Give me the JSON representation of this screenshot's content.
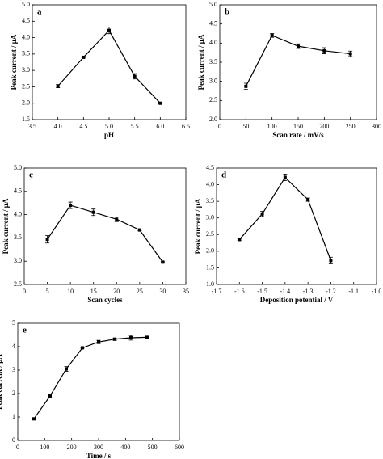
{
  "chart_data": [
    {
      "type": "line",
      "title": "a",
      "xlabel": "pH",
      "ylabel": "Peak current / μA",
      "color": "#000000",
      "x": [
        4.0,
        4.5,
        5.0,
        5.5,
        6.0
      ],
      "values": [
        2.52,
        3.4,
        4.22,
        2.82,
        2.0
      ],
      "errors": [
        0.05,
        0.02,
        0.1,
        0.08,
        0.02
      ],
      "xlim": [
        3.5,
        6.5
      ],
      "xticks": [
        3.5,
        {
          "value": 4,
          "label": "4.0"
        },
        4.5,
        {
          "value": 5,
          "label": "5.0"
        },
        5.5,
        {
          "value": 6,
          "label": "6.0"
        },
        6.5
      ],
      "ylim": [
        1.5,
        5
      ],
      "yticks": [
        1.5,
        {
          "value": 2,
          "label": "2.0"
        },
        2.5,
        {
          "value": 3,
          "label": "3.0"
        },
        3.5,
        {
          "value": 4,
          "label": "4.0"
        },
        4.5,
        {
          "value": 5,
          "label": "5.0"
        }
      ]
    },
    {
      "type": "line",
      "title": "b",
      "xlabel": "Scan rate / mV/s",
      "ylabel": "Peak current / μA",
      "color": "#000000",
      "x": [
        50,
        100,
        150,
        200,
        250
      ],
      "values": [
        2.87,
        4.2,
        3.92,
        3.8,
        3.72
      ],
      "errors": [
        0.08,
        0.05,
        0.06,
        0.08,
        0.07
      ],
      "xlim": [
        0,
        300
      ],
      "xticks": [
        0,
        50,
        100,
        150,
        200,
        250,
        300
      ],
      "ylim": [
        2,
        5
      ],
      "yticks": [
        {
          "value": 2,
          "label": "2.0"
        },
        2.5,
        {
          "value": 3,
          "label": "3.0"
        },
        3.5,
        {
          "value": 4,
          "label": "4.0"
        },
        4.5,
        {
          "value": 5,
          "label": "5.0"
        }
      ]
    },
    {
      "type": "line",
      "title": "c",
      "xlabel": "Scan cycles",
      "ylabel": "Peak current / μA",
      "color": "#000000",
      "x": [
        5,
        10,
        15,
        20,
        25,
        30
      ],
      "values": [
        3.47,
        4.2,
        4.05,
        3.9,
        3.67,
        2.98
      ],
      "errors": [
        0.08,
        0.07,
        0.07,
        0.05,
        0.02,
        0.01
      ],
      "xlim": [
        0,
        35
      ],
      "xticks": [
        0,
        5,
        10,
        15,
        20,
        25,
        30,
        35
      ],
      "ylim": [
        2.5,
        5
      ],
      "yticks": [
        2.5,
        {
          "value": 3,
          "label": "3.0"
        },
        3.5,
        {
          "value": 4,
          "label": "4.0"
        },
        4.5,
        {
          "value": 5,
          "label": "5.0"
        }
      ]
    },
    {
      "type": "line",
      "title": "d",
      "xlabel": "Deposition potential / V",
      "ylabel": "Peak current / μA",
      "color": "#000000",
      "x": [
        -1.6,
        -1.5,
        -1.4,
        -1.3,
        -1.2
      ],
      "values": [
        2.35,
        3.12,
        4.22,
        3.55,
        1.72
      ],
      "errors": [
        0.02,
        0.08,
        0.1,
        0.05,
        0.1
      ],
      "xlim": [
        -1.7,
        -1.0
      ],
      "xticks": [
        -1.7,
        -1.6,
        -1.5,
        -1.4,
        -1.3,
        -1.2,
        -1.1,
        {
          "value": -1,
          "label": "-1.0"
        }
      ],
      "ylim": [
        1,
        4.5
      ],
      "yticks": [
        {
          "value": 1,
          "label": "1.0"
        },
        1.5,
        {
          "value": 2,
          "label": "2.0"
        },
        2.5,
        {
          "value": 3,
          "label": "3.0"
        },
        3.5,
        {
          "value": 4,
          "label": "4.0"
        },
        4.5
      ]
    },
    {
      "type": "line",
      "title": "e",
      "xlabel": "Time / s",
      "ylabel": "Peak current / μA",
      "color": "#000000",
      "x": [
        60,
        120,
        180,
        240,
        300,
        360,
        420,
        480
      ],
      "values": [
        0.92,
        1.9,
        3.05,
        3.95,
        4.2,
        4.32,
        4.38,
        4.4
      ],
      "errors": [
        0.02,
        0.08,
        0.1,
        0.02,
        0.07,
        0.05,
        0.1,
        0.05
      ],
      "xlim": [
        0,
        600
      ],
      "xticks": [
        0,
        100,
        200,
        300,
        400,
        500,
        600
      ],
      "ylim": [
        0,
        5
      ],
      "yticks": [
        0,
        1,
        2,
        3,
        4,
        5
      ]
    }
  ]
}
